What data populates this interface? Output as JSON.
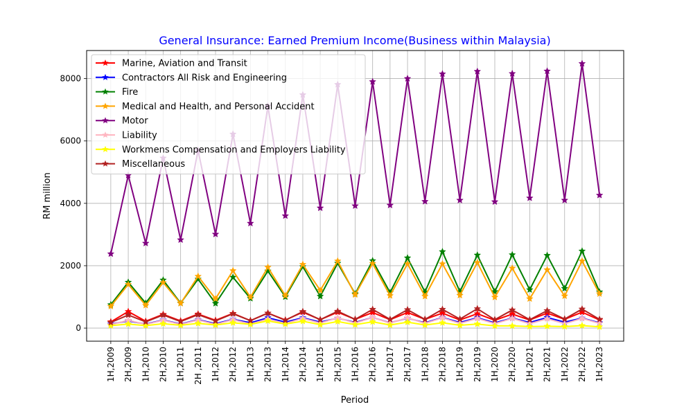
{
  "chart_data": {
    "type": "line",
    "title": "General Insurance: Earned Premium Income(Business within Malaysia)",
    "xlabel": "Period",
    "ylabel": "RM million",
    "ylim": [
      -420,
      8900
    ],
    "yticks": [
      0,
      2000,
      4000,
      6000,
      8000
    ],
    "grid": true,
    "legend_position": "top-left",
    "title_color": "#0000ff",
    "categories": [
      "1H,2009",
      "2H,2009",
      "1H,2010",
      "2H,2010",
      "1H,2011",
      "2H ,2011",
      "1H,2012",
      "2H,2012",
      "1H,2013",
      "2H,2013",
      "1H,2014",
      "2H,2014",
      "1H,2015",
      "2H,2015",
      "1H,2016",
      "2H,2016",
      "1H,2017",
      "2H,2017",
      "1H,2018",
      "2H,2018",
      "1H,2019",
      "2H,2019",
      "1H,2020",
      "2H,2020",
      "1H,2021",
      "2H,2021",
      "1H,2022",
      "2H,2022",
      "1H,2023"
    ],
    "series": [
      {
        "name": "Marine, Aviation and Transit",
        "color": "#ff0000",
        "values": [
          200,
          530,
          220,
          440,
          230,
          450,
          250,
          470,
          240,
          480,
          260,
          510,
          270,
          510,
          280,
          500,
          270,
          500,
          280,
          480,
          260,
          460,
          250,
          450,
          260,
          480,
          280,
          510,
          260
        ]
      },
      {
        "name": "Contractors All Risk and Engineering",
        "color": "#0000ff",
        "values": [
          130,
          230,
          130,
          260,
          130,
          270,
          140,
          280,
          170,
          330,
          190,
          330,
          190,
          320,
          180,
          340,
          170,
          320,
          170,
          340,
          180,
          330,
          170,
          320,
          180,
          340,
          190,
          320,
          170
        ]
      },
      {
        "name": "Fire",
        "color": "#008000",
        "values": [
          750,
          1470,
          800,
          1540,
          800,
          1570,
          790,
          1630,
          950,
          1830,
          1000,
          1970,
          1020,
          2080,
          1100,
          2160,
          1140,
          2250,
          1160,
          2450,
          1170,
          2340,
          1170,
          2350,
          1230,
          2330,
          1270,
          2470,
          1160
        ]
      },
      {
        "name": "Medical and Health, and Personal Accident",
        "color": "#ffa500",
        "values": [
          700,
          1400,
          730,
          1460,
          790,
          1660,
          940,
          1840,
          990,
          1950,
          1040,
          2040,
          1210,
          2150,
          1070,
          2070,
          1040,
          2060,
          1020,
          2060,
          1050,
          2100,
          990,
          1920,
          940,
          1870,
          1030,
          2150,
          1100
        ]
      },
      {
        "name": "Motor",
        "color": "#800080",
        "values": [
          2380,
          4900,
          2720,
          5450,
          2830,
          5700,
          3010,
          6220,
          3360,
          7120,
          3600,
          7480,
          3850,
          7810,
          3920,
          7900,
          3940,
          8000,
          4060,
          8150,
          4100,
          8230,
          4050,
          8160,
          4170,
          8240,
          4100,
          8480,
          4260
        ]
      },
      {
        "name": "Liability",
        "color": "#ffb6c1",
        "values": [
          110,
          250,
          120,
          250,
          120,
          260,
          120,
          270,
          130,
          290,
          150,
          310,
          160,
          330,
          160,
          340,
          160,
          330,
          150,
          330,
          150,
          310,
          140,
          310,
          140,
          300,
          140,
          310,
          150
        ]
      },
      {
        "name": "Workmens Compensation and Employers Liability",
        "color": "#ffff00",
        "values": [
          80,
          130,
          80,
          140,
          90,
          150,
          100,
          170,
          120,
          230,
          130,
          220,
          110,
          210,
          110,
          200,
          100,
          190,
          100,
          170,
          90,
          130,
          70,
          70,
          50,
          60,
          50,
          80,
          40
        ]
      },
      {
        "name": "Miscellaneous",
        "color": "#b22222",
        "values": [
          180,
          420,
          200,
          420,
          210,
          430,
          230,
          460,
          240,
          480,
          250,
          530,
          270,
          540,
          280,
          600,
          280,
          590,
          280,
          600,
          290,
          620,
          270,
          580,
          270,
          560,
          290,
          610,
          280
        ]
      }
    ]
  }
}
